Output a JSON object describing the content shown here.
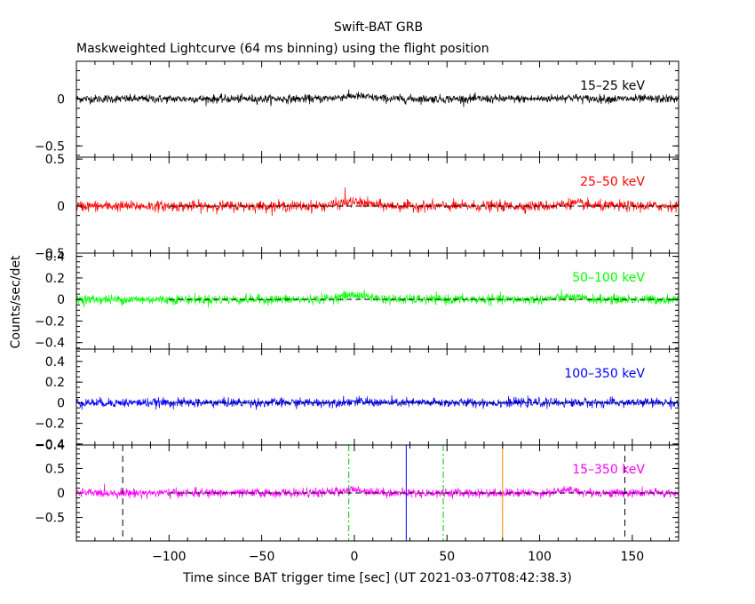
{
  "chart_data": {
    "type": "line",
    "title": "Swift-BAT GRB",
    "subtitle": "Maskweighted Lightcurve (64 ms binning) using the flight position",
    "xlabel": "Time since BAT trigger time [sec] (UT 2021-03-07T08:42:38.3)",
    "ylabel": "Counts/sec/det",
    "xlim": [
      -150,
      175
    ],
    "x_ticks": [
      -100,
      -50,
      0,
      50,
      100,
      150
    ],
    "x_tick_labels": [
      "−100",
      "−50",
      "0",
      "50",
      "100",
      "150"
    ],
    "panels": [
      {
        "name": "15-25 keV",
        "label": "15–25 keV",
        "color": "#000000",
        "ylim": [
          -0.62,
          0.4
        ],
        "y_ticks": [
          0,
          -0.5
        ],
        "y_tick_labels": [
          "0",
          "−0.5"
        ],
        "noise_sigma": 0.022,
        "zero_line": false,
        "bumps": [
          {
            "x": 0,
            "height": 0.03,
            "width": 8
          },
          {
            "x": 115,
            "height": 0.015,
            "width": 6
          }
        ]
      },
      {
        "name": "25-50 keV",
        "label": "25–50 keV",
        "color": "#ff0000",
        "ylim": [
          -0.5,
          0.52
        ],
        "y_ticks": [
          0.5,
          0,
          -0.5
        ],
        "y_tick_labels": [
          "0.5",
          "0",
          "−0.5"
        ],
        "noise_sigma": 0.028,
        "zero_line": true,
        "bumps": [
          {
            "x": 0,
            "height": 0.04,
            "width": 8
          },
          {
            "x": 118,
            "height": 0.03,
            "width": 6
          }
        ],
        "spikes": [
          {
            "x": -5,
            "value": 0.2
          }
        ]
      },
      {
        "name": "50-100 keV",
        "label": "50–100 keV",
        "color": "#00ff00",
        "ylim": [
          -0.46,
          0.43
        ],
        "y_ticks": [
          0.4,
          0.2,
          0,
          -0.2,
          -0.4
        ],
        "y_tick_labels": [
          "0.4",
          "0.2",
          "0",
          "−0.2",
          "−0.4"
        ],
        "noise_sigma": 0.022,
        "zero_line": true,
        "bumps": [
          {
            "x": 0,
            "height": 0.04,
            "width": 8
          },
          {
            "x": 115,
            "height": 0.02,
            "width": 6
          }
        ]
      },
      {
        "name": "100-350 keV",
        "label": "100–350 keV",
        "color": "#0000ff",
        "ylim": [
          -0.41,
          0.52
        ],
        "y_ticks": [
          0.4,
          0.2,
          0,
          -0.2,
          -0.4
        ],
        "y_tick_labels": [
          "0.4",
          "0.2",
          "0",
          "−0.2",
          "−0.4"
        ],
        "noise_sigma": 0.022,
        "zero_line": true,
        "bumps": [
          {
            "x": 0,
            "height": 0.01,
            "width": 8
          }
        ]
      },
      {
        "name": "15-350 keV",
        "label": "15–350 keV",
        "color": "#ff00ff",
        "ylim": [
          -0.98,
          0.98
        ],
        "y_ticks": [
          0.5,
          0,
          -0.5
        ],
        "y_tick_labels": [
          "0.5",
          "0",
          "−0.5"
        ],
        "minor_top_label": "−0.4",
        "noise_sigma": 0.045,
        "zero_line": true,
        "bumps": [
          {
            "x": 0,
            "height": 0.06,
            "width": 8
          },
          {
            "x": 115,
            "height": 0.05,
            "width": 6
          }
        ],
        "markers": [
          {
            "name": "t-minus-window",
            "x": -125,
            "color": "#000000",
            "style": "dashed"
          },
          {
            "name": "t90-start",
            "x": -3,
            "color": "#00c800",
            "style": "dashdot"
          },
          {
            "name": "trigger-window",
            "x": 28,
            "color": "#0000ff",
            "style": "solid"
          },
          {
            "name": "t90-end",
            "x": 48,
            "color": "#00c800",
            "style": "dashdot"
          },
          {
            "name": "t100-end",
            "x": 80,
            "color": "#ff8000",
            "style": "solid"
          },
          {
            "name": "t-plus-window",
            "x": 146,
            "color": "#000000",
            "style": "dashed"
          }
        ]
      }
    ],
    "binning_s": 0.064,
    "grid": false
  }
}
